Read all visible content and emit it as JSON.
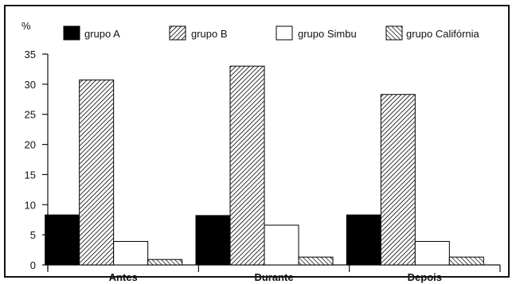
{
  "chart_data": {
    "type": "bar",
    "ylabel": "%",
    "ylim": [
      0,
      35
    ],
    "yticks": [
      0,
      5,
      10,
      15,
      20,
      25,
      30,
      35
    ],
    "categories": [
      "Antes",
      "Durante",
      "Depois"
    ],
    "legend_position": "top",
    "grid": false,
    "series": [
      {
        "name": "grupo A",
        "values": [
          8.3,
          8.2,
          8.3
        ],
        "fill": "solid",
        "color": "#000000"
      },
      {
        "name": "grupo B",
        "values": [
          30.7,
          33.0,
          28.3
        ],
        "fill": "diagonal-hatch-dense",
        "color": "#000000"
      },
      {
        "name": "grupo Simbu",
        "values": [
          3.9,
          6.6,
          3.9
        ],
        "fill": "white",
        "color": "#000000"
      },
      {
        "name": "grupo Califórnia",
        "values": [
          0.9,
          1.3,
          1.3
        ],
        "fill": "diagonal-hatch-sparse",
        "color": "#000000"
      }
    ]
  }
}
